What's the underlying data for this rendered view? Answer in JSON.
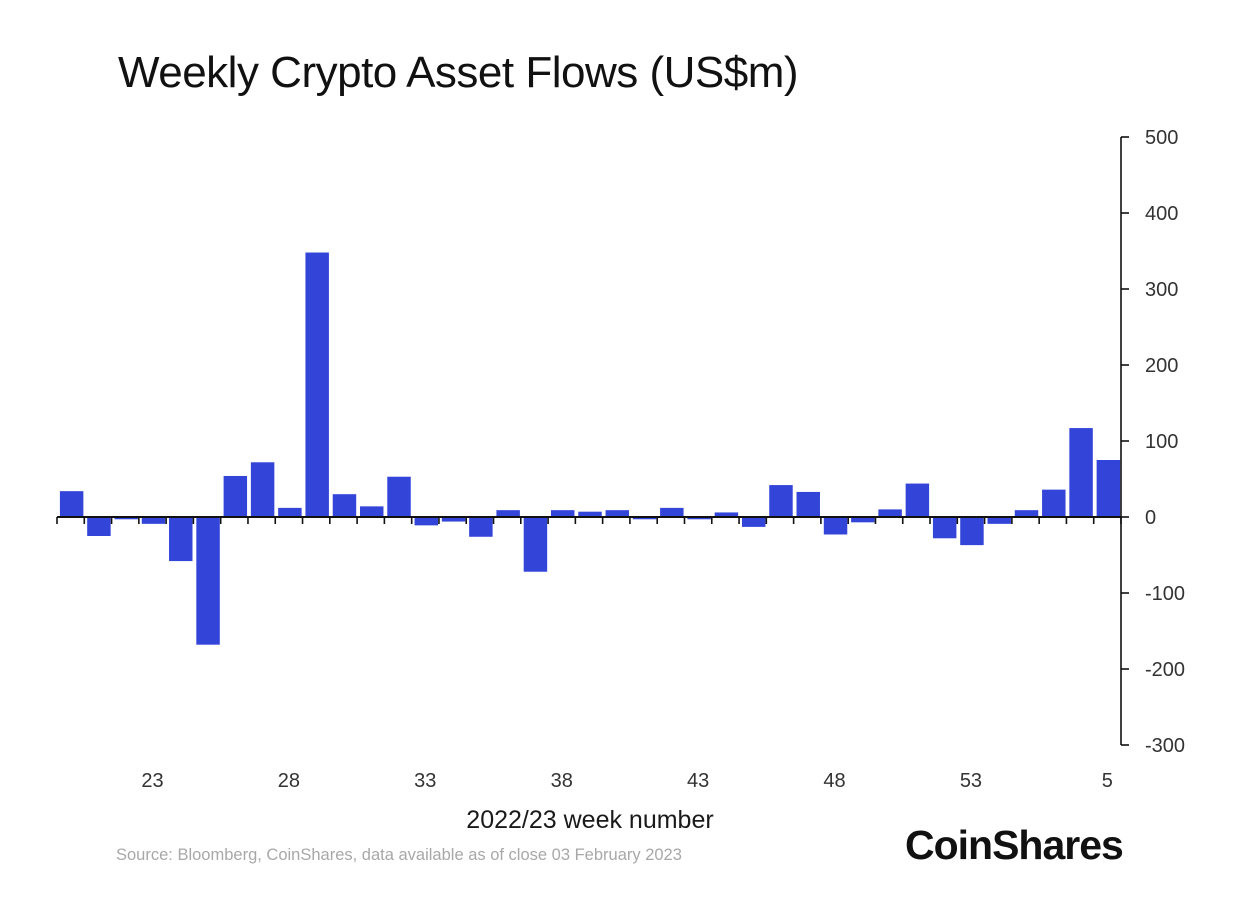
{
  "brand": "CoinShares",
  "source_note": "Source: Bloomberg, CoinShares, data available as of close 03 February 2023",
  "chart_data": {
    "type": "bar",
    "title": "Weekly Crypto Asset Flows (US$m)",
    "xlabel": "2022/23 week number",
    "ylabel": "",
    "ylim": [
      -300,
      500
    ],
    "yticks": [
      500,
      400,
      300,
      200,
      100,
      0,
      -100,
      -200,
      -300
    ],
    "y_axis_position": "right",
    "grid": false,
    "bar_color": "#3344d9",
    "xtick_labels": [
      "23",
      "28",
      "33",
      "38",
      "43",
      "48",
      "53",
      "5"
    ],
    "categories": [
      "20",
      "21",
      "22",
      "23",
      "24",
      "25",
      "26",
      "27",
      "28",
      "29",
      "30",
      "31",
      "32",
      "33",
      "34",
      "35",
      "36",
      "37",
      "38",
      "39",
      "40",
      "41",
      "42",
      "43",
      "44",
      "45",
      "46",
      "47",
      "48",
      "49",
      "50",
      "51",
      "52",
      "53",
      "1",
      "2",
      "3",
      "4",
      "5"
    ],
    "values": [
      34,
      -25,
      -3,
      -9,
      -58,
      -168,
      54,
      72,
      12,
      348,
      30,
      14,
      53,
      -11,
      -6,
      -26,
      9,
      -72,
      9,
      7,
      9,
      -3,
      12,
      -3,
      6,
      -13,
      42,
      33,
      -23,
      -7,
      10,
      44,
      -28,
      -37,
      -9,
      9,
      36,
      117,
      75
    ]
  }
}
